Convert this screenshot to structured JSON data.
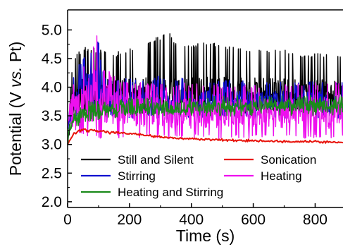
{
  "chart_data": {
    "type": "line",
    "xlabel": "Time (s)",
    "ylabel_parts": [
      "Potential (V ",
      "vs.",
      " Pt)"
    ],
    "xlim": [
      0,
      890
    ],
    "ylim": [
      1.9,
      5.35
    ],
    "x_ticks": [
      0,
      200,
      400,
      600,
      800
    ],
    "x_tick_labels": [
      "0",
      "200",
      "400",
      "600",
      "800"
    ],
    "y_ticks": [
      2.0,
      2.5,
      3.0,
      3.5,
      4.0,
      4.5,
      5.0
    ],
    "y_tick_labels": [
      "2.0",
      "2.5",
      "3.0",
      "3.5",
      "4.0",
      "4.5",
      "5.0"
    ],
    "grid": false,
    "legend_position": "lower-center",
    "series": [
      {
        "name": "Still and Silent",
        "color": "#000000",
        "x": [
          0,
          10,
          20,
          30,
          40,
          50,
          60,
          80,
          100,
          120,
          150,
          180,
          200,
          230,
          260,
          300,
          330,
          360,
          400,
          450,
          500,
          550,
          600,
          650,
          700,
          750,
          800,
          850,
          890
        ],
        "mean": [
          3.0,
          3.55,
          3.75,
          3.8,
          3.82,
          3.85,
          3.85,
          3.85,
          3.85,
          3.85,
          3.85,
          3.85,
          3.85,
          3.85,
          3.85,
          3.85,
          3.85,
          3.85,
          3.85,
          3.85,
          3.85,
          3.85,
          3.85,
          3.85,
          3.85,
          3.85,
          3.85,
          3.85,
          3.85
        ],
        "min": [
          3.0,
          3.3,
          3.4,
          3.5,
          3.55,
          3.55,
          3.55,
          3.55,
          3.55,
          3.55,
          3.55,
          3.55,
          3.55,
          3.55,
          3.55,
          3.55,
          3.55,
          3.55,
          3.55,
          3.55,
          3.55,
          3.55,
          3.55,
          3.55,
          3.55,
          3.55,
          3.55,
          3.55,
          3.55
        ],
        "max": [
          3.0,
          4.2,
          4.5,
          4.6,
          4.65,
          4.7,
          4.7,
          4.7,
          4.65,
          4.65,
          4.6,
          4.65,
          4.7,
          4.75,
          4.8,
          4.9,
          4.95,
          4.7,
          4.75,
          4.8,
          4.75,
          4.7,
          4.7,
          4.65,
          4.65,
          4.6,
          4.6,
          4.6,
          4.6
        ],
        "samples": 700
      },
      {
        "name": "Sonication",
        "color": "#e8140c",
        "x": [
          0,
          5,
          10,
          20,
          30,
          40,
          50,
          60,
          80,
          100,
          150,
          200,
          250,
          300,
          350,
          400,
          450,
          500,
          550,
          600,
          650,
          700,
          750,
          800,
          850,
          890
        ],
        "mean": [
          3.0,
          3.05,
          3.1,
          3.18,
          3.22,
          3.25,
          3.26,
          3.25,
          3.25,
          3.23,
          3.21,
          3.19,
          3.16,
          3.13,
          3.11,
          3.1,
          3.09,
          3.08,
          3.07,
          3.07,
          3.06,
          3.05,
          3.05,
          3.05,
          3.04,
          3.04
        ],
        "min": [
          3.0,
          3.04,
          3.09,
          3.16,
          3.2,
          3.22,
          3.23,
          3.22,
          3.22,
          3.2,
          3.18,
          3.16,
          3.14,
          3.11,
          3.09,
          3.08,
          3.07,
          3.06,
          3.05,
          3.05,
          3.04,
          3.03,
          3.03,
          3.03,
          3.02,
          3.02
        ],
        "max": [
          3.0,
          3.06,
          3.11,
          3.2,
          3.24,
          3.27,
          3.28,
          3.27,
          3.27,
          3.25,
          3.23,
          3.21,
          3.18,
          3.15,
          3.13,
          3.12,
          3.11,
          3.1,
          3.09,
          3.09,
          3.08,
          3.07,
          3.07,
          3.07,
          3.06,
          3.06
        ],
        "samples": 300
      },
      {
        "name": "Stirring",
        "color": "#1010d0",
        "x": [
          0,
          10,
          20,
          40,
          60,
          80,
          100,
          110,
          130,
          160,
          200,
          300,
          400,
          500,
          600,
          700,
          800,
          890
        ],
        "mean": [
          3.3,
          3.6,
          3.8,
          3.9,
          3.95,
          3.95,
          3.95,
          3.85,
          3.8,
          3.75,
          3.75,
          3.75,
          3.75,
          3.75,
          3.75,
          3.75,
          3.75,
          3.75
        ],
        "min": [
          3.2,
          3.3,
          3.4,
          3.5,
          3.5,
          3.5,
          3.5,
          3.45,
          3.45,
          3.45,
          3.45,
          3.45,
          3.45,
          3.45,
          3.45,
          3.45,
          3.45,
          3.45
        ],
        "max": [
          3.3,
          4.0,
          4.2,
          4.45,
          4.6,
          4.65,
          4.85,
          4.3,
          4.2,
          4.15,
          4.15,
          4.2,
          4.15,
          4.15,
          4.1,
          4.1,
          4.1,
          4.1
        ],
        "samples": 600
      },
      {
        "name": "Heating",
        "color": "#ee10ee",
        "x": [
          0,
          10,
          30,
          60,
          80,
          90,
          110,
          150,
          200,
          300,
          400,
          500,
          600,
          700,
          800,
          890
        ],
        "mean": [
          3.3,
          3.7,
          3.75,
          3.75,
          3.8,
          3.8,
          3.75,
          3.65,
          3.6,
          3.55,
          3.55,
          3.55,
          3.55,
          3.55,
          3.55,
          3.55
        ],
        "min": [
          3.2,
          3.3,
          3.2,
          3.15,
          3.1,
          3.1,
          3.1,
          3.1,
          3.1,
          3.1,
          3.1,
          3.1,
          3.1,
          3.1,
          3.1,
          3.1
        ],
        "max": [
          3.3,
          4.0,
          4.2,
          4.5,
          4.6,
          5.12,
          4.4,
          4.2,
          4.1,
          4.05,
          4.1,
          4.05,
          4.05,
          4.05,
          4.1,
          4.1
        ],
        "samples": 650
      },
      {
        "name": "Heating and Stirring",
        "color": "#1a8a1a",
        "x": [
          0,
          5,
          15,
          30,
          60,
          100,
          150,
          200,
          300,
          400,
          500,
          600,
          700,
          800,
          890
        ],
        "mean": [
          3.0,
          3.25,
          3.4,
          3.5,
          3.58,
          3.6,
          3.62,
          3.63,
          3.64,
          3.65,
          3.66,
          3.67,
          3.68,
          3.69,
          3.7
        ],
        "min": [
          2.9,
          3.1,
          3.2,
          3.3,
          3.4,
          3.42,
          3.45,
          3.46,
          3.47,
          3.48,
          3.49,
          3.5,
          3.5,
          3.5,
          3.5
        ],
        "max": [
          3.0,
          3.4,
          3.55,
          3.65,
          3.75,
          3.8,
          3.8,
          3.82,
          3.83,
          3.84,
          3.85,
          3.85,
          3.85,
          3.86,
          3.86
        ],
        "samples": 650
      }
    ],
    "legend": {
      "rows": [
        [
          "Still and Silent",
          "Sonication"
        ],
        [
          "Stirring",
          "Heating"
        ],
        [
          "Heating and Stirring"
        ]
      ]
    }
  }
}
